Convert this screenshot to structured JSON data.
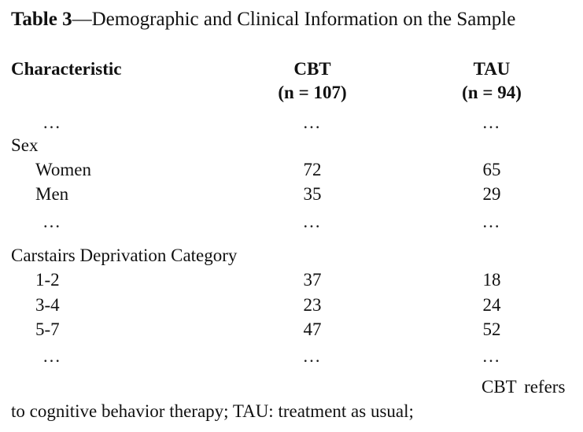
{
  "caption": {
    "label": "Table 3",
    "text": "—Demographic and Clinical Information on the Sample"
  },
  "header": {
    "characteristic": "Characteristic",
    "cbt_name": "CBT",
    "cbt_n": "(n = 107)",
    "tau_name": "TAU",
    "tau_n": "(n = 94)"
  },
  "ellipsis": "…",
  "sections": {
    "sex": {
      "title": "Sex",
      "rows": [
        {
          "label": "Women",
          "cbt": "72",
          "tau": "65"
        },
        {
          "label": "Men",
          "cbt": "35",
          "tau": "29"
        }
      ]
    },
    "carstairs": {
      "title": "Carstairs Deprivation Category",
      "rows": [
        {
          "label": "1-2",
          "cbt": "37",
          "tau": "18"
        },
        {
          "label": "3-4",
          "cbt": "23",
          "tau": "24"
        },
        {
          "label": "5-7",
          "cbt": "47",
          "tau": "52"
        }
      ]
    }
  },
  "note": {
    "line1": "CBT refers",
    "line2": "to cognitive behavior therapy; TAU: treatment as usual;"
  }
}
